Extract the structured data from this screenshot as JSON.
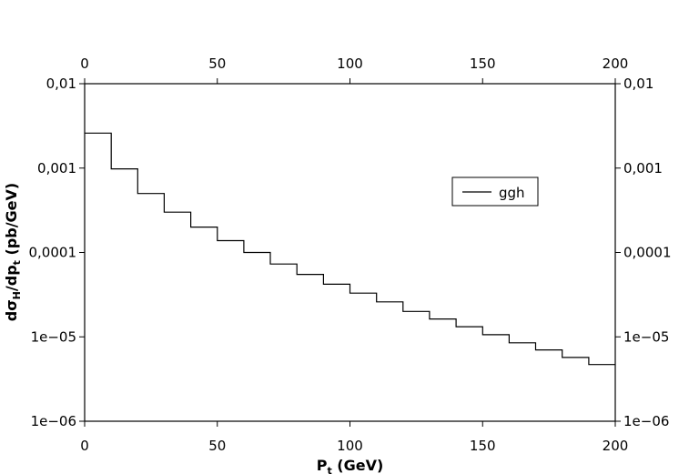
{
  "chart_data": {
    "type": "line",
    "step": true,
    "x_bin_edges": [
      0,
      10,
      20,
      30,
      40,
      50,
      60,
      70,
      80,
      90,
      100,
      110,
      120,
      130,
      140,
      150,
      160,
      170,
      180,
      190,
      200
    ],
    "series": [
      {
        "name": "ggh",
        "values": [
          0.0026,
          0.00098,
          0.0005,
          0.0003,
          0.0002,
          0.000138,
          0.0001,
          7.3e-05,
          5.5e-05,
          4.2e-05,
          3.3e-05,
          2.6e-05,
          2e-05,
          1.63e-05,
          1.32e-05,
          1.06e-05,
          8.5e-06,
          7e-06,
          5.7e-06,
          4.7e-06
        ]
      }
    ],
    "xlim": [
      0,
      200
    ],
    "ylim": [
      1e-06,
      0.01
    ],
    "y_scale": "log",
    "x_ticks": [
      "0",
      "50",
      "100",
      "150",
      "200"
    ],
    "x_tick_values": [
      0,
      50,
      100,
      150,
      200
    ],
    "y_ticks": [
      "1e−06",
      "1e−05",
      "0,0001",
      "0,001",
      "0,01"
    ],
    "y_tick_values": [
      1e-06,
      1e-05,
      0.0001,
      0.001,
      0.01
    ],
    "xlabel": {
      "main": "P",
      "sub": "t",
      "rest": " (GeV)"
    },
    "ylabel": {
      "p1": "dσ",
      "s1": "H",
      "p2": "/dp",
      "s2": "t",
      "p3": "  (pb/GeV)"
    },
    "legend_position": "right",
    "grid": false,
    "mirrored_axes": true,
    "line_color": "#000000"
  }
}
